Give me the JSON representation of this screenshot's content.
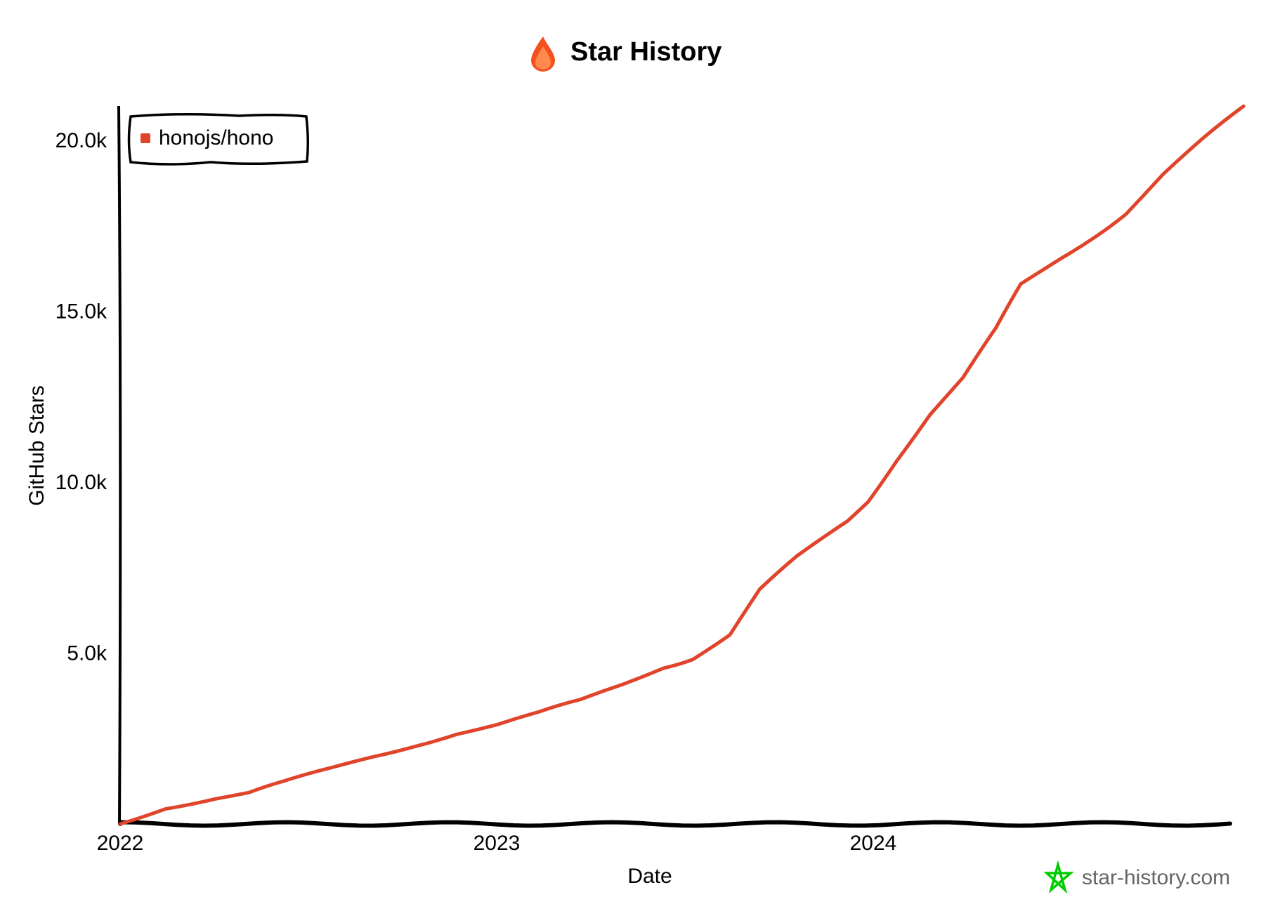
{
  "chart_data": {
    "type": "line",
    "title": "Star History",
    "title_icon": "flame-icon",
    "xlabel": "Date",
    "ylabel": "GitHub Stars",
    "x_ticks": [
      "2022",
      "2023",
      "2024"
    ],
    "y_ticks": [
      "5.0k",
      "10.0k",
      "15.0k",
      "20.0k"
    ],
    "xlim": [
      "2022-01-01",
      "2024-12-31"
    ],
    "ylim": [
      0,
      21000
    ],
    "grid": false,
    "legend_position": "top-left",
    "watermark": "star-history.com",
    "watermark_color": "#00cc00",
    "series": [
      {
        "name": "honojs/hono",
        "color": "#e0442b",
        "points": [
          [
            "2022-01-01",
            0
          ],
          [
            "2022-02-14",
            440
          ],
          [
            "2022-04-03",
            730
          ],
          [
            "2022-05-06",
            920
          ],
          [
            "2022-06-07",
            1240
          ],
          [
            "2022-07-25",
            1650
          ],
          [
            "2022-09-04",
            1970
          ],
          [
            "2022-10-13",
            2260
          ],
          [
            "2022-11-23",
            2620
          ],
          [
            "2023-01-02",
            2910
          ],
          [
            "2023-02-11",
            3280
          ],
          [
            "2023-03-23",
            3640
          ],
          [
            "2023-05-03",
            4080
          ],
          [
            "2023-06-12",
            4560
          ],
          [
            "2023-07-10",
            4810
          ],
          [
            "2023-08-15",
            5530
          ],
          [
            "2023-09-13",
            6870
          ],
          [
            "2023-10-19",
            7840
          ],
          [
            "2023-12-07",
            8860
          ],
          [
            "2023-12-27",
            9420
          ],
          [
            "2024-01-24",
            10630
          ],
          [
            "2024-02-25",
            11970
          ],
          [
            "2024-03-28",
            13060
          ],
          [
            "2024-04-29",
            14520
          ],
          [
            "2024-05-23",
            15800
          ],
          [
            "2024-07-03",
            16580
          ],
          [
            "2024-08-04",
            17190
          ],
          [
            "2024-09-02",
            17840
          ],
          [
            "2024-10-08",
            19010
          ],
          [
            "2024-11-17",
            20100
          ],
          [
            "2024-12-25",
            21000
          ]
        ]
      }
    ]
  }
}
